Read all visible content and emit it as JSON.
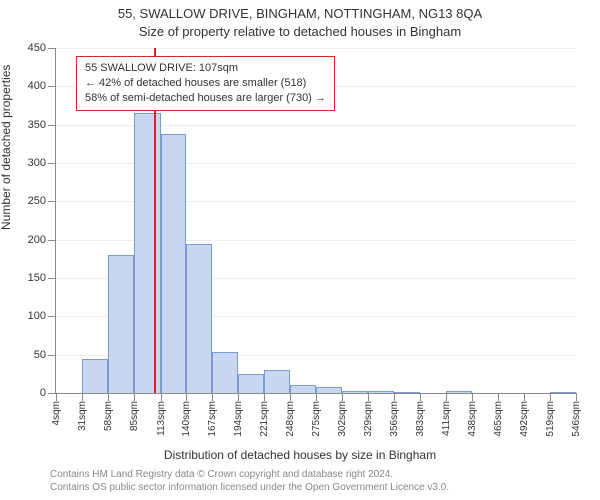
{
  "title": "55, SWALLOW DRIVE, BINGHAM, NOTTINGHAM, NG13 8QA",
  "subtitle": "Size of property relative to detached houses in Bingham",
  "ylabel": "Number of detached properties",
  "xlabel": "Distribution of detached houses by size in Bingham",
  "footer_line1": "Contains HM Land Registry data © Crown copyright and database right 2024.",
  "footer_line2": "Contains OS public sector information licensed under the Open Government Licence v3.0.",
  "chart": {
    "type": "histogram",
    "background_color": "#ffffff",
    "grid_color": "#eeeeee",
    "axis_color": "#888888",
    "bar_fill": "#c9d8f0",
    "bar_stroke": "#7a9bd1",
    "marker_color": "#d62728",
    "annotation_border": "#d62728",
    "ylim": [
      0,
      450
    ],
    "ytick_step": 50,
    "x_ticks": [
      4,
      31,
      58,
      85,
      113,
      140,
      167,
      194,
      221,
      248,
      275,
      302,
      329,
      356,
      383,
      411,
      438,
      465,
      492,
      519,
      546
    ],
    "x_tick_unit": "sqm",
    "bars": [
      {
        "start": 4,
        "end": 31,
        "value": 0
      },
      {
        "start": 31,
        "end": 58,
        "value": 45
      },
      {
        "start": 58,
        "end": 85,
        "value": 180
      },
      {
        "start": 85,
        "end": 113,
        "value": 365
      },
      {
        "start": 113,
        "end": 140,
        "value": 338
      },
      {
        "start": 140,
        "end": 167,
        "value": 195
      },
      {
        "start": 167,
        "end": 194,
        "value": 53
      },
      {
        "start": 194,
        "end": 221,
        "value": 25
      },
      {
        "start": 221,
        "end": 248,
        "value": 30
      },
      {
        "start": 248,
        "end": 275,
        "value": 10
      },
      {
        "start": 275,
        "end": 302,
        "value": 8
      },
      {
        "start": 302,
        "end": 329,
        "value": 2
      },
      {
        "start": 329,
        "end": 356,
        "value": 2
      },
      {
        "start": 356,
        "end": 383,
        "value": 1
      },
      {
        "start": 383,
        "end": 411,
        "value": 0
      },
      {
        "start": 411,
        "end": 438,
        "value": 2
      },
      {
        "start": 438,
        "end": 465,
        "value": 0
      },
      {
        "start": 465,
        "end": 492,
        "value": 0
      },
      {
        "start": 492,
        "end": 519,
        "value": 0
      },
      {
        "start": 519,
        "end": 546,
        "value": 1
      }
    ],
    "marker_x": 107,
    "marker_height": 450,
    "annotation": {
      "line1": "55 SWALLOW DRIVE: 107sqm",
      "line2": "← 42% of detached houses are smaller (518)",
      "line3": "58% of semi-detached houses are larger (730) →"
    },
    "title_fontsize": 13,
    "label_fontsize": 12,
    "tick_fontsize": 11
  }
}
